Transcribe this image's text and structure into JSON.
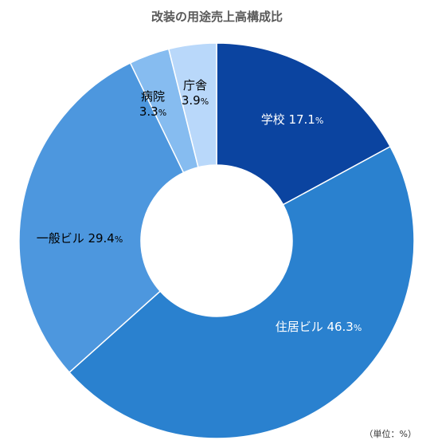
{
  "chart_data": {
    "type": "pie",
    "title": "改装の用途売上高構成比",
    "unit_note": "（単位：%）",
    "categories": [
      "学校",
      "住居ビル",
      "一般ビル",
      "病院",
      "庁舎"
    ],
    "values": [
      17.1,
      46.3,
      29.4,
      3.3,
      3.9
    ],
    "value_suffix": "%",
    "colors": [
      "#0b44a0",
      "#2a81cf",
      "#4d97de",
      "#86bcf0",
      "#b9d8fa"
    ],
    "donut": true,
    "start_angle": "12 o'clock, clockwise",
    "legend": "none (labels on slices)"
  }
}
